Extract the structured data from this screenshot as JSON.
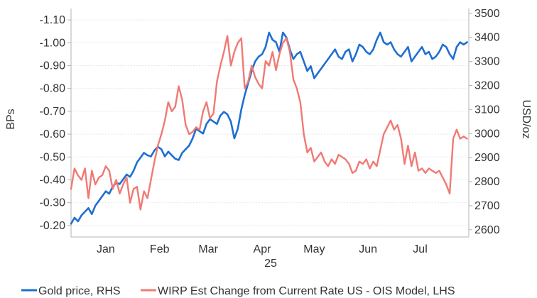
{
  "chart_data": {
    "type": "line",
    "year_label": "25",
    "x_ticks": [
      "Jan",
      "Feb",
      "Mar",
      "Apr",
      "May",
      "Jun",
      "Jul"
    ],
    "x_tick_positions": [
      10,
      41,
      69,
      100,
      130,
      161,
      191
    ],
    "x_range": [
      -10,
      219
    ],
    "left_axis": {
      "label": "BPs",
      "range": [
        -0.15,
        -1.15
      ],
      "ticks": [
        -1.1,
        -1.0,
        -0.9,
        -0.8,
        -0.7,
        -0.6,
        -0.5,
        -0.4,
        -0.3,
        -0.2
      ],
      "tick_labels": [
        "-1.10",
        "-1.00",
        "-0.90",
        "-0.80",
        "-0.70",
        "-0.60",
        "-0.50",
        "-0.40",
        "-0.30",
        "-0.20"
      ]
    },
    "right_axis": {
      "label": "USD/oz",
      "range": [
        2570,
        3520
      ],
      "ticks": [
        2600,
        2700,
        2800,
        2900,
        3000,
        3100,
        3200,
        3300,
        3400,
        3500
      ],
      "tick_labels": [
        "2600",
        "2700",
        "2800",
        "2900",
        "3000",
        "3100",
        "3200",
        "3300",
        "3400",
        "3500"
      ]
    },
    "grid": true,
    "legend_position": "bottom",
    "series": [
      {
        "name": "Gold price, RHS",
        "axis": "right",
        "color": "#1f6fd1",
        "x": [
          -10,
          -8,
          -6,
          -4,
          -2,
          0,
          2,
          4,
          6,
          8,
          10,
          12,
          14,
          16,
          18,
          20,
          22,
          24,
          26,
          28,
          30,
          32,
          34,
          36,
          38,
          40,
          42,
          44,
          46,
          48,
          50,
          52,
          54,
          56,
          58,
          60,
          62,
          64,
          66,
          68,
          70,
          72,
          74,
          76,
          78,
          80,
          82,
          84,
          86,
          88,
          90,
          92,
          94,
          96,
          98,
          100,
          102,
          104,
          106,
          108,
          110,
          112,
          114,
          116,
          118,
          120,
          122,
          124,
          126,
          128,
          130,
          132,
          134,
          136,
          138,
          140,
          142,
          144,
          146,
          148,
          150,
          152,
          154,
          156,
          158,
          160,
          162,
          164,
          166,
          168,
          170,
          172,
          174,
          176,
          178,
          180,
          182,
          184,
          186,
          188,
          190,
          192,
          194,
          196,
          198,
          200,
          202,
          204,
          206,
          208,
          210,
          212,
          214,
          216,
          218
        ],
        "y": [
          2625,
          2650,
          2635,
          2660,
          2675,
          2690,
          2665,
          2700,
          2720,
          2740,
          2760,
          2750,
          2780,
          2795,
          2790,
          2810,
          2830,
          2820,
          2845,
          2880,
          2900,
          2920,
          2910,
          2905,
          2930,
          2945,
          2935,
          2905,
          2925,
          2910,
          2895,
          2890,
          2920,
          2935,
          2950,
          2980,
          3020,
          3010,
          3000,
          3040,
          3060,
          3050,
          3040,
          3075,
          3090,
          3080,
          3050,
          2980,
          3020,
          3100,
          3160,
          3210,
          3260,
          3300,
          3320,
          3330,
          3360,
          3420,
          3390,
          3380,
          3340,
          3420,
          3400,
          3350,
          3310,
          3330,
          3340,
          3300,
          3260,
          3280,
          3230,
          3250,
          3270,
          3290,
          3310,
          3330,
          3350,
          3320,
          3310,
          3340,
          3350,
          3300,
          3330,
          3370,
          3360,
          3340,
          3330,
          3350,
          3390,
          3420,
          3380,
          3370,
          3380,
          3350,
          3330,
          3320,
          3340,
          3360,
          3300,
          3320,
          3340,
          3360,
          3330,
          3340,
          3310,
          3320,
          3340,
          3370,
          3360,
          3330,
          3310,
          3360,
          3380,
          3370,
          3380
        ]
      },
      {
        "name": "WIRP Est Change from Current Rate US - OIS Model, LHS",
        "axis": "left",
        "color": "#f07a74",
        "x": [
          -10,
          -8,
          -6,
          -4,
          -2,
          0,
          2,
          4,
          6,
          8,
          10,
          12,
          14,
          16,
          18,
          20,
          22,
          24,
          26,
          28,
          30,
          32,
          34,
          36,
          38,
          40,
          42,
          44,
          46,
          48,
          50,
          52,
          54,
          56,
          58,
          60,
          62,
          64,
          66,
          68,
          70,
          72,
          74,
          76,
          78,
          80,
          82,
          84,
          86,
          88,
          90,
          92,
          94,
          96,
          98,
          100,
          102,
          104,
          106,
          108,
          110,
          112,
          114,
          116,
          118,
          120,
          122,
          124,
          126,
          128,
          130,
          132,
          134,
          136,
          138,
          140,
          142,
          144,
          146,
          148,
          150,
          152,
          154,
          156,
          158,
          160,
          162,
          164,
          166,
          168,
          170,
          172,
          174,
          176,
          178,
          180,
          182,
          184,
          186,
          188,
          190,
          192,
          194,
          196,
          198,
          200,
          202,
          204,
          206,
          208,
          210,
          212,
          214,
          216,
          218
        ],
        "y": [
          -0.36,
          -0.45,
          -0.42,
          -0.4,
          -0.45,
          -0.32,
          -0.44,
          -0.38,
          -0.41,
          -0.42,
          -0.46,
          -0.44,
          -0.36,
          -0.4,
          -0.34,
          -0.38,
          -0.41,
          -0.3,
          -0.36,
          -0.37,
          -0.27,
          -0.35,
          -0.32,
          -0.4,
          -0.48,
          -0.55,
          -0.6,
          -0.66,
          -0.74,
          -0.7,
          -0.72,
          -0.81,
          -0.75,
          -0.64,
          -0.6,
          -0.61,
          -0.63,
          -0.62,
          -0.7,
          -0.74,
          -0.67,
          -0.69,
          -0.83,
          -0.9,
          -0.96,
          -1.03,
          -0.9,
          -0.96,
          -1.0,
          -1.02,
          -0.8,
          -0.83,
          -0.9,
          -0.85,
          -0.82,
          -0.8,
          -0.92,
          -0.9,
          -0.96,
          -0.88,
          -0.95,
          -1.0,
          -1.02,
          -0.96,
          -0.84,
          -0.8,
          -0.74,
          -0.6,
          -0.52,
          -0.54,
          -0.48,
          -0.5,
          -0.52,
          -0.48,
          -0.46,
          -0.49,
          -0.47,
          -0.51,
          -0.5,
          -0.49,
          -0.47,
          -0.43,
          -0.44,
          -0.48,
          -0.47,
          -0.49,
          -0.45,
          -0.48,
          -0.46,
          -0.53,
          -0.6,
          -0.63,
          -0.66,
          -0.62,
          -0.64,
          -0.58,
          -0.47,
          -0.55,
          -0.46,
          -0.52,
          -0.44,
          -0.45,
          -0.43,
          -0.45,
          -0.44,
          -0.43,
          -0.44,
          -0.41,
          -0.38,
          -0.34,
          -0.58,
          -0.62,
          -0.58,
          -0.59,
          -0.58
        ]
      }
    ]
  }
}
